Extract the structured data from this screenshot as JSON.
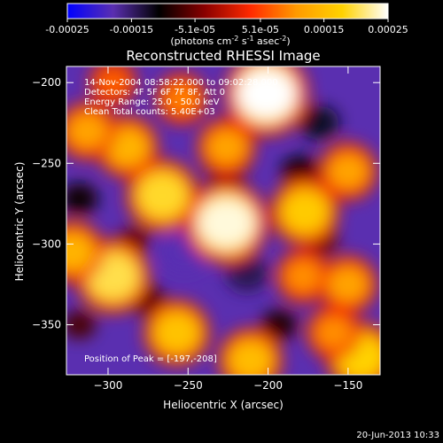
{
  "chart_data": {
    "type": "heatmap",
    "title": "Reconstructed RHESSI Image",
    "xlabel": "Heliocentric X (arcsec)",
    "ylabel": "Heliocentric Y (arcsec)",
    "xlim": [
      -326,
      -130
    ],
    "ylim": [
      -381,
      -190
    ],
    "xticks": [
      -300,
      -250,
      -200,
      -150
    ],
    "yticks": [
      -200,
      -250,
      -300,
      -350
    ],
    "colorbar": {
      "ticks": [
        "-0.00025",
        "-0.00015",
        "-5.1e-05",
        "5.1e-05",
        "0.00015",
        "0.00025"
      ],
      "tick_values": [
        -0.00025,
        -0.00015,
        -5.1e-05,
        5.1e-05,
        0.00015,
        0.00025
      ],
      "range": [
        -0.00025,
        0.00025
      ],
      "units_prefix": "(photons cm",
      "units_exp1": "-2",
      "units_mid": " s",
      "units_exp2": "-1",
      "units_mid2": " asec",
      "units_exp3": "-2",
      "units_suffix": ")",
      "colors": [
        "#0000ff",
        "#5a2fb0",
        "#000000",
        "#8a0000",
        "#ff2a00",
        "#ff9a00",
        "#ffd200",
        "#ffffff"
      ]
    },
    "annotations": [
      "14-Nov-2004 08:58:22.000 to 09:02:28.000",
      "Detectors: 4F 5F 6F 7F 8F, Att 0",
      "Energy Range: 25.0 - 50.0 keV",
      "Clean    Total counts: 5.40E+03"
    ],
    "peak_label": "Position of Peak = [-197,-208]",
    "bright_sources": [
      {
        "x": -201,
        "y": -207,
        "value": 0.00025
      },
      {
        "x": -226,
        "y": -287,
        "value": 0.00024
      },
      {
        "x": -266,
        "y": -270,
        "value": 0.00019
      },
      {
        "x": -288,
        "y": -240,
        "value": 0.00014
      },
      {
        "x": -313,
        "y": -230,
        "value": 0.00012
      },
      {
        "x": -177,
        "y": -280,
        "value": 0.00017
      },
      {
        "x": -150,
        "y": -255,
        "value": 0.00012
      },
      {
        "x": -226,
        "y": -240,
        "value": 0.00012
      },
      {
        "x": -297,
        "y": -320,
        "value": 0.0002
      },
      {
        "x": -322,
        "y": -305,
        "value": 0.00014
      },
      {
        "x": -257,
        "y": -355,
        "value": 0.00016
      },
      {
        "x": -211,
        "y": -372,
        "value": 0.00015
      },
      {
        "x": -178,
        "y": -320,
        "value": 0.0001
      },
      {
        "x": -150,
        "y": -325,
        "value": 0.00012
      },
      {
        "x": -142,
        "y": -370,
        "value": 0.00018
      },
      {
        "x": -159,
        "y": -355,
        "value": 0.0001
      },
      {
        "x": -254,
        "y": -210,
        "value": 9e-05
      },
      {
        "x": -297,
        "y": -200,
        "value": 7e-05
      }
    ],
    "dark_regions": [
      {
        "x": -226,
        "y": -255,
        "value": -0.00012
      },
      {
        "x": -252,
        "y": -305,
        "value": -0.00018
      },
      {
        "x": -213,
        "y": -318,
        "value": -0.00014
      },
      {
        "x": -168,
        "y": -225,
        "value": -0.00012
      },
      {
        "x": -180,
        "y": -255,
        "value": -0.0001
      },
      {
        "x": -318,
        "y": -272,
        "value": -0.0001
      },
      {
        "x": -275,
        "y": -335,
        "value": -8e-05
      },
      {
        "x": -193,
        "y": -350,
        "value": -9e-05
      },
      {
        "x": -166,
        "y": -298,
        "value": -6e-05
      },
      {
        "x": -318,
        "y": -350,
        "value": -7e-05
      },
      {
        "x": -284,
        "y": -298,
        "value": -6e-05
      }
    ]
  },
  "footer": {
    "timestamp": "20-Jun-2013 10:33"
  }
}
